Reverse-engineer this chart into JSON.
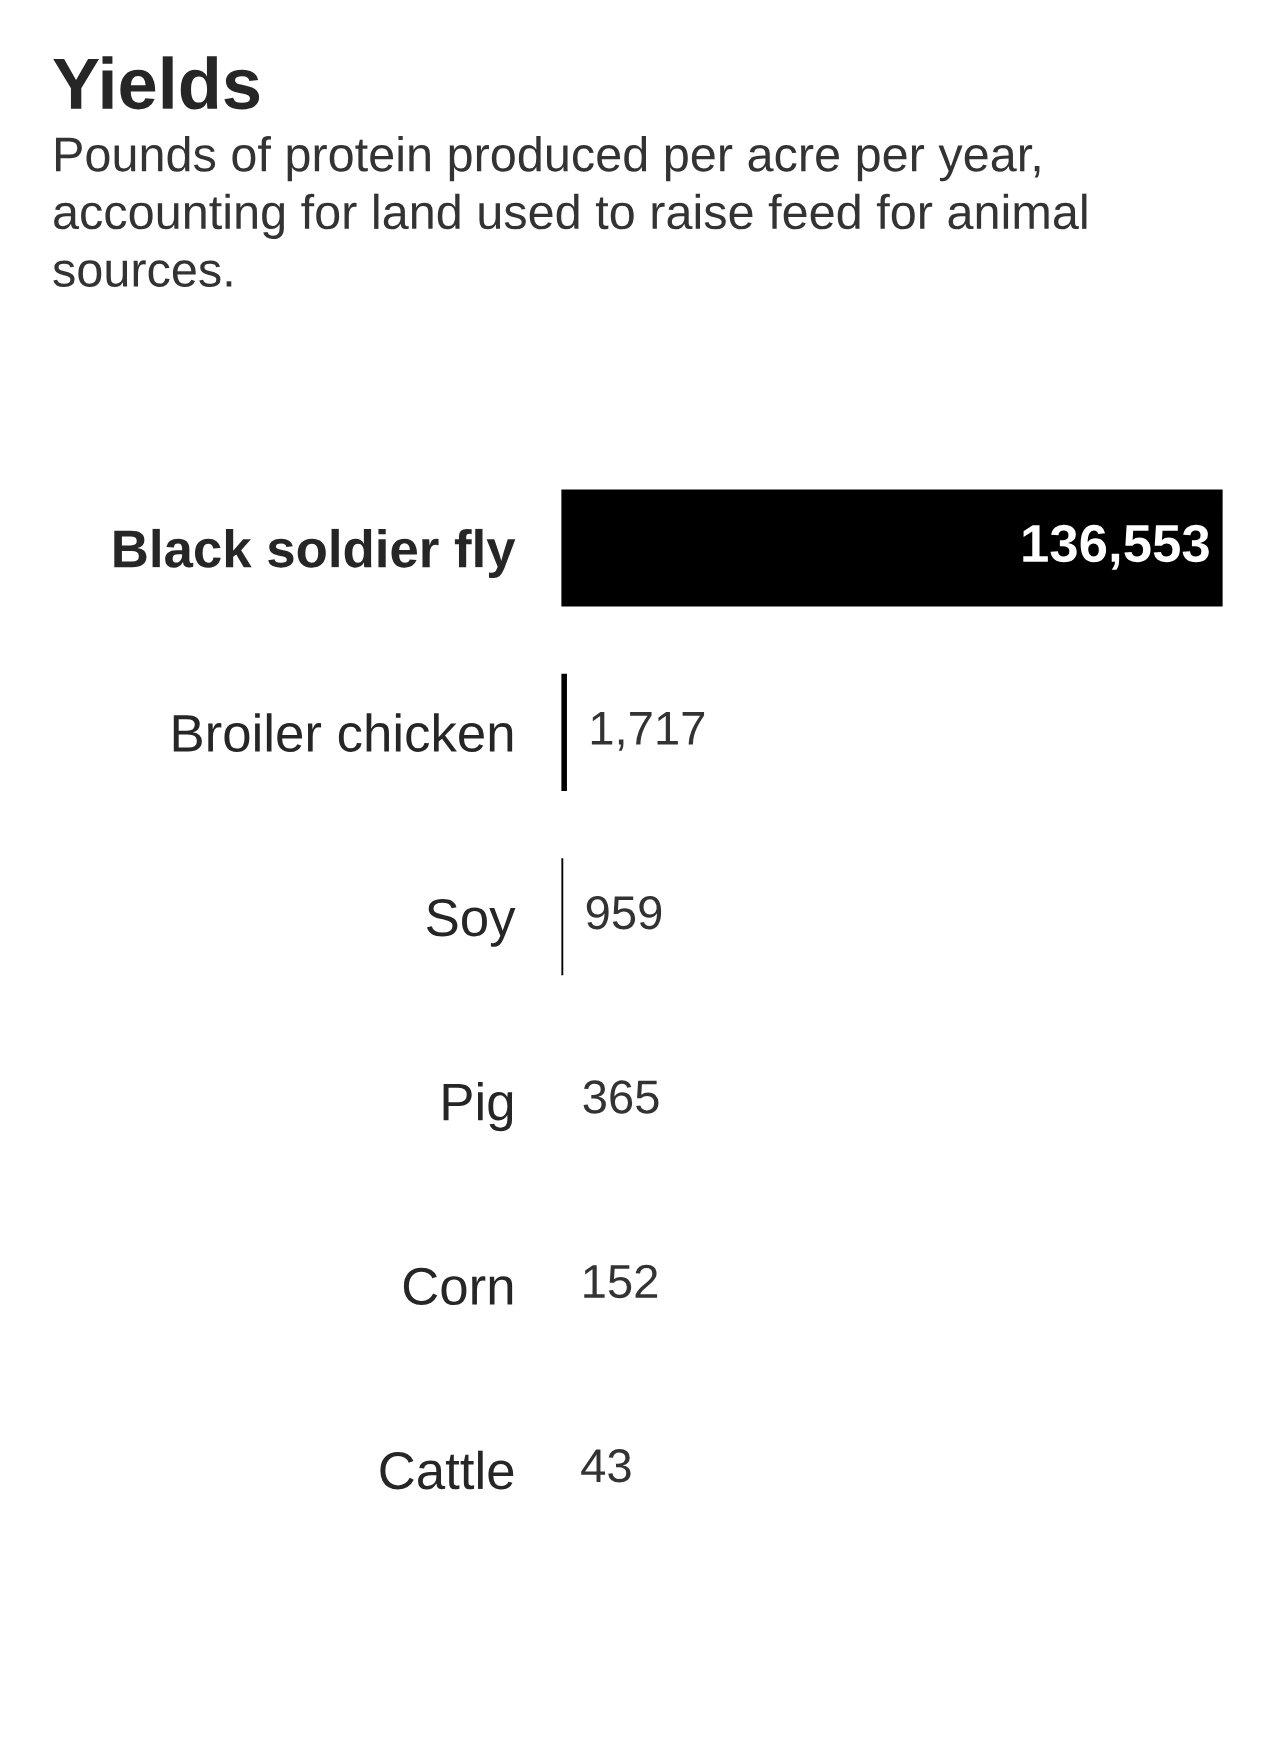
{
  "chart_data": {
    "type": "bar",
    "orientation": "horizontal",
    "title": "Yields",
    "subtitle": "Pounds of protein produced per acre per year, accounting for land used to raise feed for animal sources.",
    "categories": [
      "Black soldier fly",
      "Broiler chicken",
      "Soy",
      "Pig",
      "Corn",
      "Cattle"
    ],
    "values": [
      136553,
      1717,
      959,
      365,
      152,
      43
    ],
    "color": "#000000",
    "value_labels": [
      "136,553",
      "1,717",
      "959",
      "365",
      "152",
      "43"
    ],
    "grid": false,
    "legend": false
  }
}
